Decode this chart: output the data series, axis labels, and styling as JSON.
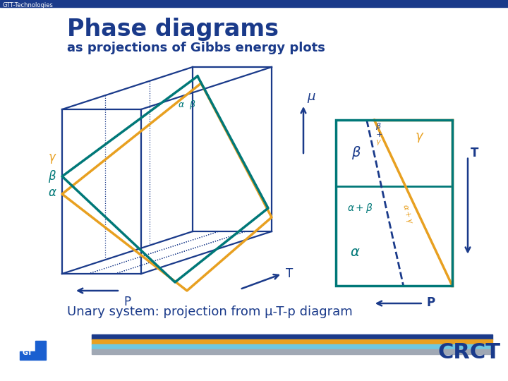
{
  "title": "Phase diagrams",
  "subtitle": "as projections of Gibbs energy plots",
  "title_color": "#1a3a8a",
  "subtitle_color": "#1a3a8a",
  "bg_color": "#ffffff",
  "header_bar_color": "#1a3a8a",
  "teal": "#007878",
  "orange": "#e8a020",
  "dblue": "#1a3a8a",
  "bottom_text": "Unary system: projection from μ-T-p diagram",
  "footer_colors": [
    "#1a3a8a",
    "#e8a020",
    "#6ec8e0",
    "#a0a8b4"
  ],
  "crct_color": "#1a3a8a",
  "gtt_text_color": "#555555"
}
